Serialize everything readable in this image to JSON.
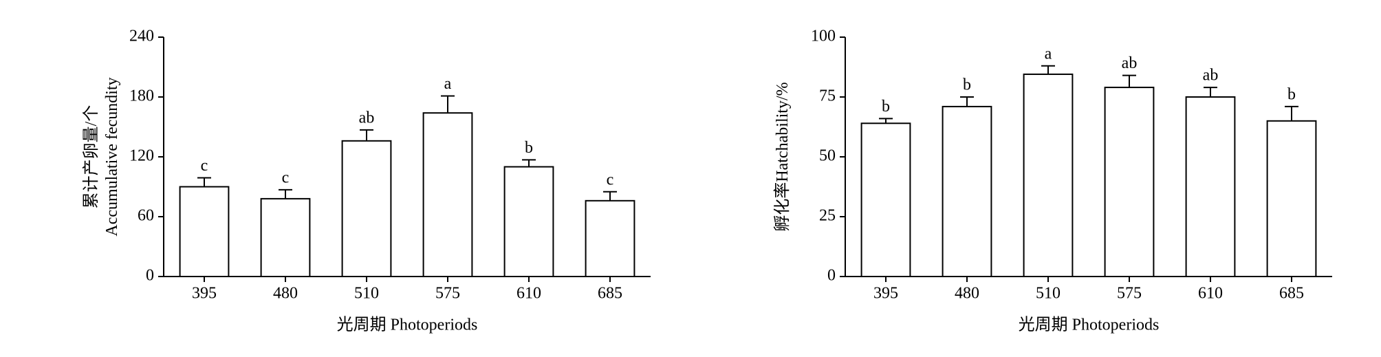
{
  "chart_data": [
    {
      "type": "bar",
      "ylabel": [
        "累计产卵量/个",
        "Accumulative fecundity"
      ],
      "xlabel": "光周期 Photoperiods",
      "categories": [
        "395",
        "480",
        "510",
        "575",
        "610",
        "685"
      ],
      "values": [
        90,
        78,
        136,
        164,
        110,
        76
      ],
      "errors": [
        9,
        9,
        11,
        17,
        7,
        9
      ],
      "annotations": [
        "c",
        "c",
        "ab",
        "a",
        "b",
        "c"
      ],
      "color": "#ffffff",
      "ylim": [
        0,
        240
      ],
      "yticks": [
        0,
        60,
        120,
        180,
        240
      ]
    },
    {
      "type": "bar",
      "ylabel": [
        "孵化率",
        "Hatchability/%"
      ],
      "xlabel": "光周期 Photoperiods",
      "categories": [
        "395",
        "480",
        "510",
        "575",
        "610",
        "685"
      ],
      "values": [
        64,
        71,
        84.5,
        79,
        75,
        65
      ],
      "errors": [
        2,
        4,
        3.5,
        5,
        4,
        6
      ],
      "annotations": [
        "b",
        "b",
        "a",
        "ab",
        "ab",
        "b"
      ],
      "color": "#ffffff",
      "ylim": [
        0,
        100
      ],
      "yticks": [
        0,
        25,
        50,
        75,
        100
      ]
    }
  ]
}
